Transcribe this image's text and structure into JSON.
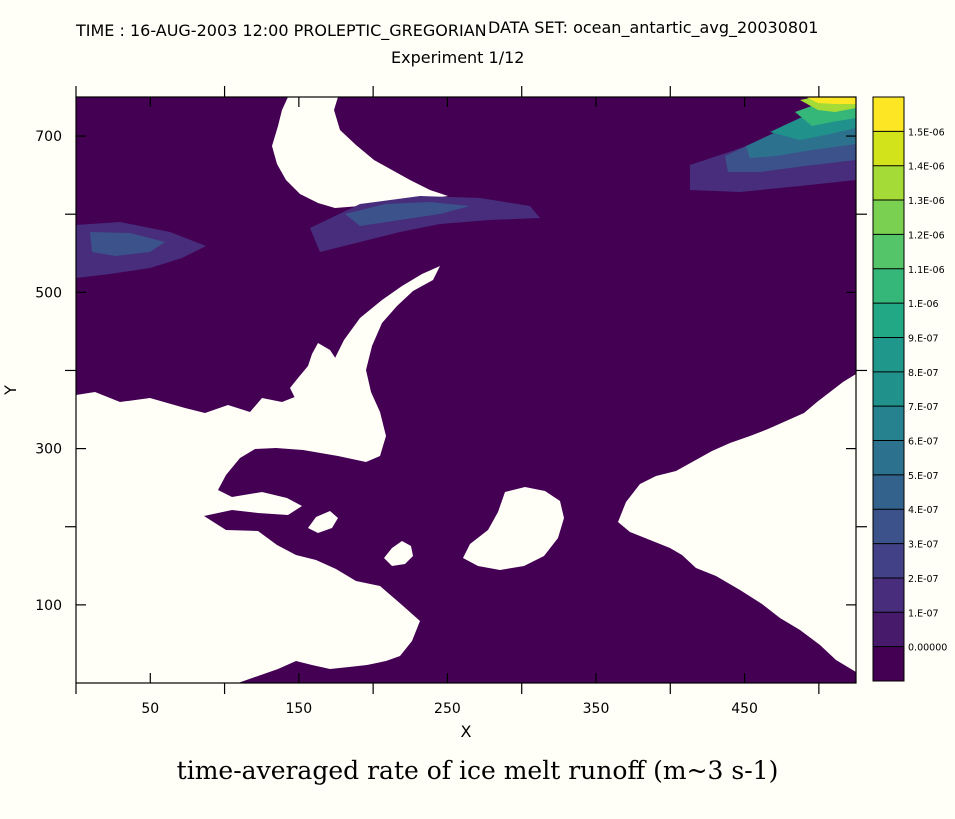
{
  "header": {
    "time": "TIME : 16-AUG-2003 12:00 PROLEPTIC_GREGORIAN",
    "dataset": "DATA SET: ocean_antartic_avg_20030801",
    "experiment": "Experiment 1/12"
  },
  "chart_data": {
    "type": "heatmap",
    "title": "time-averaged rate of ice melt runoff (m~3 s-1)",
    "xlabel": "X",
    "ylabel": "Y",
    "xlim": [
      0,
      525
    ],
    "ylim": [
      0,
      750
    ],
    "x_ticks": [
      50,
      150,
      250,
      350,
      450
    ],
    "y_ticks": [
      100,
      300,
      500,
      700
    ],
    "x_minor_ticks": [
      0,
      100,
      200,
      300,
      400,
      500
    ],
    "y_minor_ticks": [
      200,
      400,
      600
    ],
    "colorbar": {
      "levels": [
        "1.5E-06",
        "1.4E-06",
        "1.3E-06",
        "1.2E-06",
        "1.1E-06",
        "1.E-06",
        "9.E-07",
        "8.E-07",
        "7.E-07",
        "6.E-07",
        "5.E-07",
        "4.E-07",
        "3.E-07",
        "2.E-07",
        "1.E-07",
        "0.00000"
      ],
      "colors": [
        "#fde725",
        "#d2e21b",
        "#a5db36",
        "#7ad151",
        "#54c568",
        "#35b779",
        "#22a884",
        "#1f988b",
        "#21918c",
        "#26828e",
        "#2c728e",
        "#33638d",
        "#3b528b",
        "#424086",
        "#472d7b",
        "#481a6c",
        "#440154"
      ]
    },
    "regions": {
      "ocean": "#440154",
      "land": "#fffff8"
    }
  }
}
